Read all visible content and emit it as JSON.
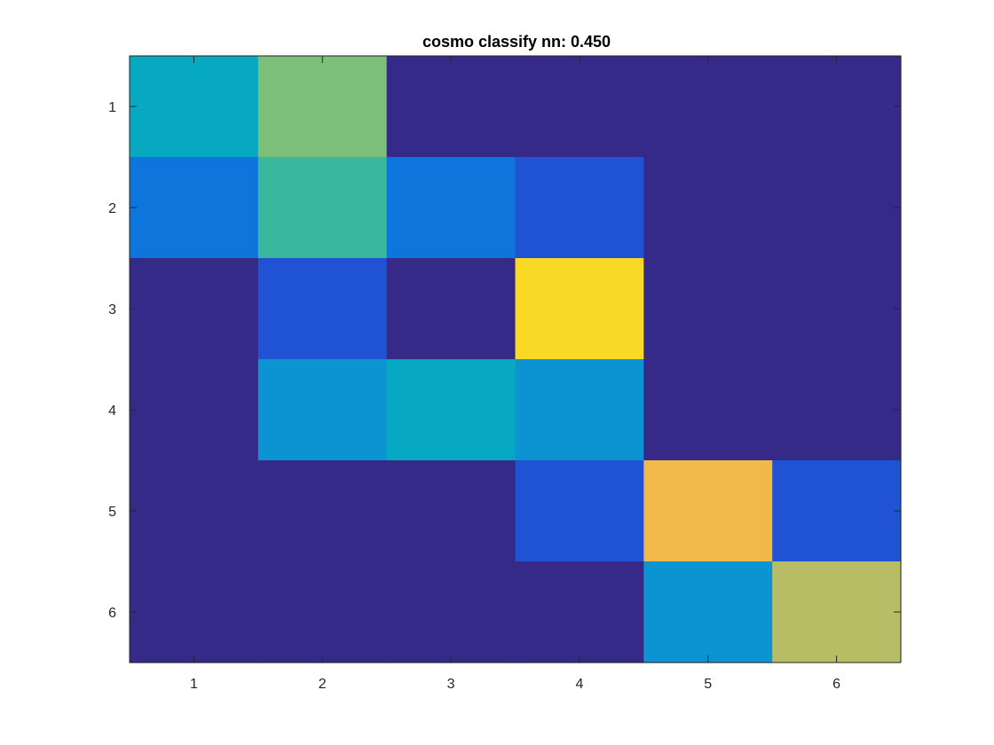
{
  "chart_data": {
    "type": "heatmap",
    "title": "cosmo classify nn: 0.450",
    "xlabel": "",
    "ylabel": "",
    "x_categories": [
      "1",
      "2",
      "3",
      "4",
      "5",
      "6"
    ],
    "y_categories": [
      "1",
      "2",
      "3",
      "4",
      "5",
      "6"
    ],
    "values": [
      [
        4,
        6,
        0,
        0,
        0,
        0
      ],
      [
        2,
        5,
        2,
        1,
        0,
        0
      ],
      [
        0,
        1,
        0,
        9,
        0,
        0
      ],
      [
        0,
        3,
        4,
        3,
        0,
        0
      ],
      [
        0,
        0,
        0,
        1,
        8,
        1
      ],
      [
        0,
        0,
        0,
        0,
        3,
        7
      ]
    ],
    "clim": [
      0,
      9
    ],
    "colormap": "parula",
    "colormap_stops": [
      "#352a87",
      "#2053d4",
      "#0d75dc",
      "#0c93d2",
      "#07a9c2",
      "#38b99e",
      "#7cbf7b",
      "#b7bd64",
      "#f1b94a",
      "#f8d925"
    ],
    "grid": false,
    "axis_color": "#262626"
  }
}
